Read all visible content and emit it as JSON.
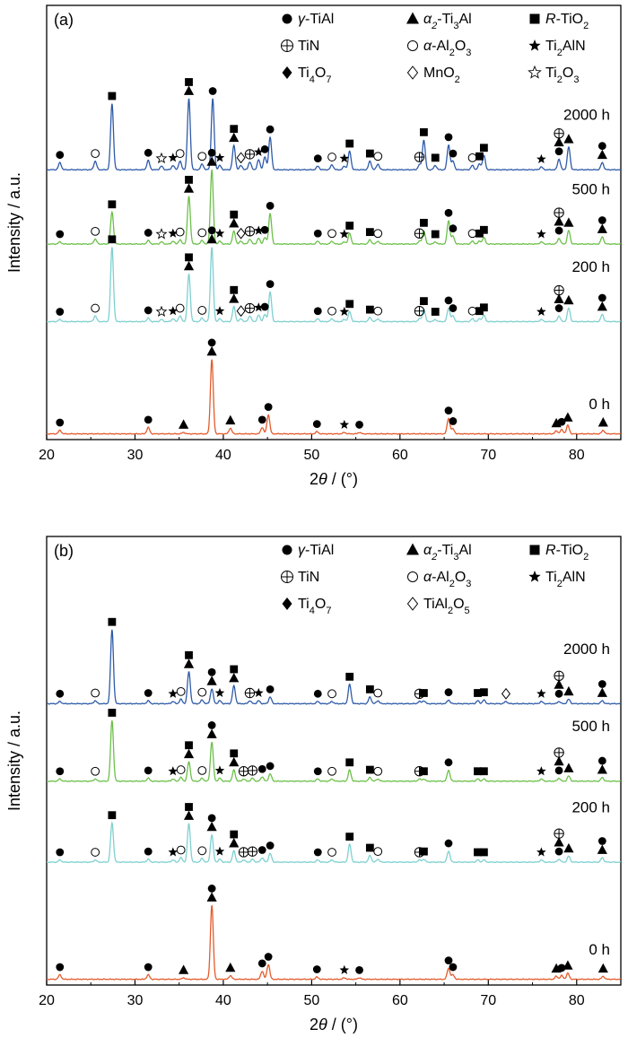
{
  "chart_data": [
    {
      "type": "line",
      "panel": "(a)",
      "xlabel": "2θ / (°)",
      "ylabel": "Intensity / a.u.",
      "xlim": [
        20,
        85
      ],
      "xticks": [
        "20",
        "30",
        "40",
        "50",
        "60",
        "70",
        "80"
      ],
      "legend": [
        {
          "symbol": "filled-circle",
          "text": "γ-TiAl"
        },
        {
          "symbol": "filled-triangle",
          "text": "α2-Ti3Al"
        },
        {
          "symbol": "filled-square",
          "text": "R-TiO2"
        },
        {
          "symbol": "circle-plus",
          "text": "TiN"
        },
        {
          "symbol": "open-circle",
          "text": "α-Al2O3"
        },
        {
          "symbol": "filled-star",
          "text": "Ti2AlN"
        },
        {
          "symbol": "filled-diamond",
          "text": "Ti4O7"
        },
        {
          "symbol": "open-diamond",
          "text": "MnO2"
        },
        {
          "symbol": "open-star",
          "text": "Ti2O3"
        }
      ],
      "series": [
        {
          "name": "2000 h",
          "color": "#2f5ba8",
          "peaks": [
            [
              21.5,
              1.0
            ],
            [
              25.5,
              1.2
            ],
            [
              27.4,
              9.3
            ],
            [
              31.5,
              1.3
            ],
            [
              33.0,
              0.5
            ],
            [
              34.3,
              0.6
            ],
            [
              35.1,
              1.2
            ],
            [
              36.1,
              10.0
            ],
            [
              37.6,
              0.8
            ],
            [
              38.8,
              10.0
            ],
            [
              39.6,
              0.6
            ],
            [
              41.2,
              3.4
            ],
            [
              42.0,
              0.6
            ],
            [
              43.0,
              1.1
            ],
            [
              44.0,
              1.4
            ],
            [
              44.7,
              1.8
            ],
            [
              45.3,
              4.6
            ],
            [
              50.7,
              0.5
            ],
            [
              52.3,
              0.7
            ],
            [
              53.7,
              0.5
            ],
            [
              54.3,
              2.6
            ],
            [
              56.6,
              1.2
            ],
            [
              57.5,
              0.8
            ],
            [
              62.2,
              0.7
            ],
            [
              62.7,
              4.2
            ],
            [
              64.0,
              0.6
            ],
            [
              65.5,
              3.5
            ],
            [
              66.0,
              1.2
            ],
            [
              68.2,
              0.6
            ],
            [
              69.0,
              0.8
            ],
            [
              69.5,
              2.0
            ],
            [
              76.0,
              0.4
            ],
            [
              78.0,
              1.5
            ],
            [
              79.1,
              3.2
            ],
            [
              82.9,
              1.0
            ]
          ]
        },
        {
          "name": "500 h",
          "color": "#6cc04a",
          "peaks": [
            [
              21.5,
              0.3
            ],
            [
              25.5,
              0.7
            ],
            [
              27.4,
              4.5
            ],
            [
              31.5,
              0.5
            ],
            [
              33.0,
              0.3
            ],
            [
              34.3,
              0.4
            ],
            [
              35.1,
              0.6
            ],
            [
              36.1,
              6.7
            ],
            [
              37.6,
              0.5
            ],
            [
              38.7,
              10.5
            ],
            [
              39.6,
              0.4
            ],
            [
              41.2,
              1.8
            ],
            [
              42.0,
              0.4
            ],
            [
              43.0,
              0.7
            ],
            [
              44.0,
              0.8
            ],
            [
              44.7,
              0.9
            ],
            [
              45.3,
              4.3
            ],
            [
              50.7,
              0.4
            ],
            [
              52.3,
              0.4
            ],
            [
              53.7,
              0.3
            ],
            [
              54.3,
              1.5
            ],
            [
              56.6,
              0.6
            ],
            [
              57.5,
              0.4
            ],
            [
              62.2,
              0.4
            ],
            [
              62.7,
              1.9
            ],
            [
              64.0,
              0.3
            ],
            [
              65.5,
              3.3
            ],
            [
              66.0,
              1.1
            ],
            [
              68.2,
              0.4
            ],
            [
              69.0,
              0.4
            ],
            [
              69.5,
              0.9
            ],
            [
              76.0,
              0.3
            ],
            [
              78.0,
              0.8
            ],
            [
              79.1,
              1.9
            ],
            [
              82.9,
              1.0
            ]
          ]
        },
        {
          "name": "200 h",
          "color": "#7fd0d0",
          "peaks": [
            [
              21.5,
              0.3
            ],
            [
              25.5,
              0.8
            ],
            [
              27.4,
              10.5
            ],
            [
              31.5,
              0.5
            ],
            [
              33.0,
              0.3
            ],
            [
              34.3,
              0.4
            ],
            [
              35.1,
              0.8
            ],
            [
              36.1,
              6.7
            ],
            [
              37.6,
              0.5
            ],
            [
              38.7,
              10.5
            ],
            [
              39.6,
              0.4
            ],
            [
              41.2,
              2.1
            ],
            [
              42.0,
              0.4
            ],
            [
              43.0,
              0.8
            ],
            [
              44.0,
              0.9
            ],
            [
              44.7,
              1.0
            ],
            [
              45.3,
              4.2
            ],
            [
              50.7,
              0.4
            ],
            [
              52.3,
              0.4
            ],
            [
              53.7,
              0.3
            ],
            [
              54.3,
              1.4
            ],
            [
              56.6,
              0.6
            ],
            [
              57.5,
              0.4
            ],
            [
              62.2,
              0.4
            ],
            [
              62.7,
              1.8
            ],
            [
              64.0,
              0.3
            ],
            [
              65.5,
              1.9
            ],
            [
              66.0,
              0.8
            ],
            [
              68.2,
              0.4
            ],
            [
              69.0,
              0.4
            ],
            [
              69.5,
              0.9
            ],
            [
              76.0,
              0.3
            ],
            [
              78.0,
              0.8
            ],
            [
              79.1,
              1.9
            ],
            [
              82.9,
              1.0
            ]
          ]
        },
        {
          "name": "0 h",
          "color": "#e35b2c",
          "peaks": [
            [
              21.5,
              0.5
            ],
            [
              31.5,
              0.9
            ],
            [
              35.5,
              0.2
            ],
            [
              38.7,
              10.5
            ],
            [
              40.8,
              0.8
            ],
            [
              44.4,
              0.9
            ],
            [
              45.1,
              2.7
            ],
            [
              50.6,
              0.3
            ],
            [
              53.7,
              0.2
            ],
            [
              55.4,
              0.2
            ],
            [
              65.5,
              2.2
            ],
            [
              66.0,
              0.7
            ],
            [
              77.7,
              0.4
            ],
            [
              78.3,
              0.6
            ],
            [
              79.0,
              1.2
            ],
            [
              83.0,
              0.5
            ]
          ]
        }
      ]
    },
    {
      "type": "line",
      "panel": "(b)",
      "xlabel": "2θ / (°)",
      "ylabel": "Intensity / a.u.",
      "xlim": [
        20,
        85
      ],
      "xticks": [
        "20",
        "30",
        "40",
        "50",
        "60",
        "70",
        "80"
      ],
      "legend": [
        {
          "symbol": "filled-circle",
          "text": "γ-TiAl"
        },
        {
          "symbol": "filled-triangle",
          "text": "α2-Ti3Al"
        },
        {
          "symbol": "filled-square",
          "text": "R-TiO2"
        },
        {
          "symbol": "circle-plus",
          "text": "TiN"
        },
        {
          "symbol": "open-circle",
          "text": "α-Al2O3"
        },
        {
          "symbol": "filled-star",
          "text": "Ti2AlN"
        },
        {
          "symbol": "filled-diamond",
          "text": "Ti4O7"
        },
        {
          "symbol": "open-diamond",
          "text": "TiAl2O5"
        }
      ],
      "series": [
        {
          "name": "2000 h",
          "color": "#2f5ba8",
          "peaks": [
            [
              21.5,
              0.3
            ],
            [
              25.5,
              0.4
            ],
            [
              27.4,
              10.0
            ],
            [
              31.5,
              0.4
            ],
            [
              34.3,
              0.3
            ],
            [
              35.2,
              0.6
            ],
            [
              36.1,
              4.3
            ],
            [
              37.6,
              0.5
            ],
            [
              38.7,
              2.0
            ],
            [
              39.6,
              0.4
            ],
            [
              41.2,
              2.4
            ],
            [
              43.0,
              0.4
            ],
            [
              44.0,
              0.4
            ],
            [
              45.3,
              0.9
            ],
            [
              50.7,
              0.3
            ],
            [
              52.3,
              0.3
            ],
            [
              54.3,
              2.6
            ],
            [
              56.6,
              0.9
            ],
            [
              57.5,
              0.4
            ],
            [
              62.2,
              0.3
            ],
            [
              62.7,
              0.4
            ],
            [
              65.5,
              0.5
            ],
            [
              68.8,
              0.4
            ],
            [
              69.5,
              0.5
            ],
            [
              72.0,
              0.3
            ],
            [
              76.0,
              0.3
            ],
            [
              78.0,
              0.3
            ],
            [
              79.1,
              0.6
            ],
            [
              82.9,
              0.4
            ]
          ]
        },
        {
          "name": "500 h",
          "color": "#6cc04a",
          "peaks": [
            [
              21.5,
              0.3
            ],
            [
              25.5,
              0.3
            ],
            [
              27.4,
              8.2
            ],
            [
              31.5,
              0.4
            ],
            [
              34.3,
              0.3
            ],
            [
              35.2,
              0.5
            ],
            [
              36.1,
              2.6
            ],
            [
              37.6,
              0.4
            ],
            [
              38.7,
              5.3
            ],
            [
              39.6,
              0.4
            ],
            [
              41.2,
              1.5
            ],
            [
              42.3,
              0.3
            ],
            [
              43.3,
              0.4
            ],
            [
              44.4,
              0.6
            ],
            [
              45.3,
              1.0
            ],
            [
              50.7,
              0.3
            ],
            [
              52.3,
              0.3
            ],
            [
              54.3,
              1.5
            ],
            [
              56.6,
              0.5
            ],
            [
              57.5,
              0.3
            ],
            [
              62.2,
              0.3
            ],
            [
              62.7,
              0.3
            ],
            [
              65.5,
              1.5
            ],
            [
              68.8,
              0.3
            ],
            [
              69.5,
              0.3
            ],
            [
              76.0,
              0.3
            ],
            [
              78.0,
              0.4
            ],
            [
              79.1,
              0.7
            ],
            [
              82.9,
              0.5
            ]
          ]
        },
        {
          "name": "200 h",
          "color": "#7fd0d0",
          "peaks": [
            [
              21.5,
              0.3
            ],
            [
              25.5,
              0.3
            ],
            [
              27.4,
              5.3
            ],
            [
              31.5,
              0.4
            ],
            [
              34.3,
              0.3
            ],
            [
              35.2,
              0.6
            ],
            [
              36.1,
              5.2
            ],
            [
              37.6,
              0.5
            ],
            [
              38.7,
              3.7
            ],
            [
              39.6,
              0.4
            ],
            [
              41.2,
              1.5
            ],
            [
              42.3,
              0.3
            ],
            [
              43.3,
              0.4
            ],
            [
              44.4,
              0.6
            ],
            [
              45.3,
              1.2
            ],
            [
              50.7,
              0.3
            ],
            [
              52.3,
              0.3
            ],
            [
              54.3,
              2.4
            ],
            [
              56.6,
              0.9
            ],
            [
              57.5,
              0.4
            ],
            [
              62.2,
              0.3
            ],
            [
              62.7,
              0.4
            ],
            [
              65.5,
              1.5
            ],
            [
              68.8,
              0.3
            ],
            [
              69.5,
              0.3
            ],
            [
              76.0,
              0.3
            ],
            [
              78.0,
              0.4
            ],
            [
              79.1,
              0.8
            ],
            [
              82.9,
              0.6
            ]
          ]
        },
        {
          "name": "0 h",
          "color": "#e35b2c",
          "peaks": [
            [
              21.5,
              0.6
            ],
            [
              31.5,
              0.6
            ],
            [
              35.5,
              0.2
            ],
            [
              38.7,
              10.0
            ],
            [
              40.8,
              0.5
            ],
            [
              44.4,
              1.1
            ],
            [
              45.1,
              2.0
            ],
            [
              50.6,
              0.3
            ],
            [
              53.7,
              0.2
            ],
            [
              55.4,
              0.2
            ],
            [
              65.5,
              1.5
            ],
            [
              66.0,
              0.6
            ],
            [
              77.7,
              0.4
            ],
            [
              78.3,
              0.5
            ],
            [
              79.0,
              0.8
            ],
            [
              83.0,
              0.4
            ]
          ]
        }
      ]
    }
  ]
}
